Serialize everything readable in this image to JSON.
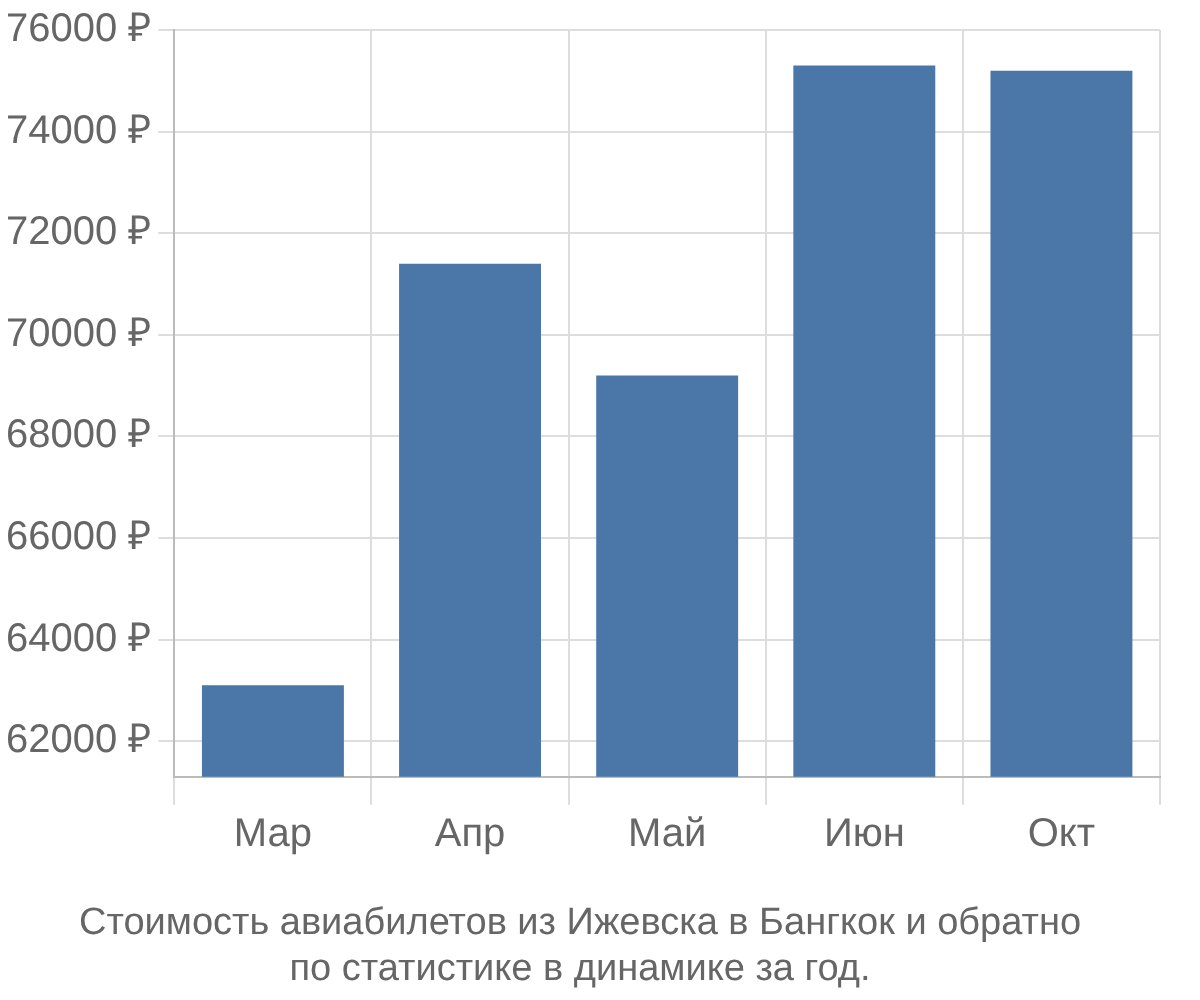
{
  "chart_data": {
    "type": "bar",
    "title": [
      "Стоимость авиабилетов из Ижевска в Бангкок и обратно",
      "по статистике в динамике за год."
    ],
    "categories": [
      "Мар",
      "Апр",
      "Май",
      "Июн",
      "Окт"
    ],
    "values": [
      63100,
      71400,
      69200,
      75300,
      75200
    ],
    "color": "#4a76a8",
    "ylim": [
      61300,
      76000
    ],
    "yticks": [
      {
        "value": 62000,
        "label": "62000 ₽"
      },
      {
        "value": 64000,
        "label": "64000 ₽"
      },
      {
        "value": 66000,
        "label": "66000 ₽"
      },
      {
        "value": 68000,
        "label": "68000 ₽"
      },
      {
        "value": 70000,
        "label": "70000 ₽"
      },
      {
        "value": 72000,
        "label": "72000 ₽"
      },
      {
        "value": 74000,
        "label": "74000 ₽"
      },
      {
        "value": 76000,
        "label": "76000 ₽"
      }
    ],
    "grid": true,
    "legend": false
  }
}
